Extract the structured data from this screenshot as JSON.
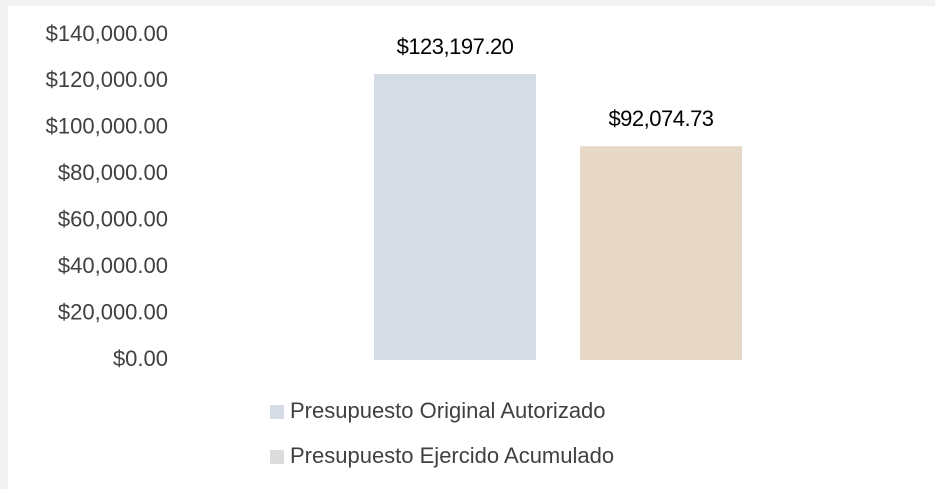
{
  "chart_data": {
    "type": "bar",
    "categories": [
      null
    ],
    "series": [
      {
        "name": "Presupuesto Original Autorizado",
        "color": "#d5dce6",
        "legend_color": "#d5dce6",
        "values": [
          123197.2
        ],
        "value_labels": [
          "$123,197.20"
        ]
      },
      {
        "name": "Presupuesto Ejercido Acumulado",
        "color": "#e6d7c7",
        "legend_color": "#dcdcdc",
        "values": [
          92074.73
        ],
        "value_labels": [
          "$92,074.73"
        ]
      }
    ],
    "ylim": [
      0,
      140000
    ],
    "yticks": [
      {
        "value": 0,
        "label": "$0.00"
      },
      {
        "value": 20000,
        "label": "$20,000.00"
      },
      {
        "value": 40000,
        "label": "$40,000.00"
      },
      {
        "value": 60000,
        "label": "$60,000.00"
      },
      {
        "value": 80000,
        "label": "$80,000.00"
      },
      {
        "value": 100000,
        "label": "$100,000.00"
      },
      {
        "value": 120000,
        "label": "$120,000.00"
      },
      {
        "value": 140000,
        "label": "$140,000.00"
      }
    ],
    "grid": false,
    "legend": "bottom"
  }
}
